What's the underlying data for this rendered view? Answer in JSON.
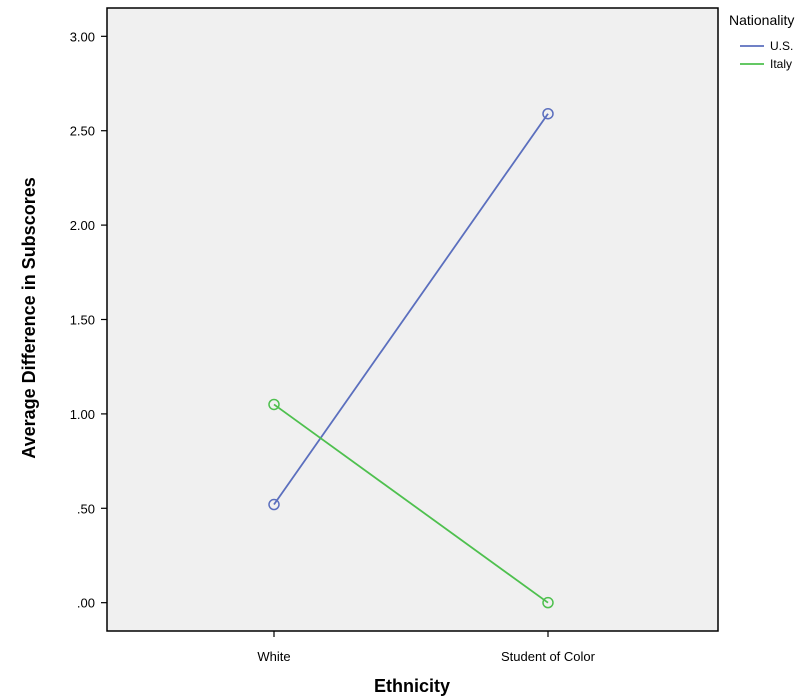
{
  "chart_data": {
    "type": "line",
    "title": "",
    "xlabel": "Ethnicity",
    "ylabel": "Average Difference in Subscores",
    "categories": [
      "White",
      "Student of Color"
    ],
    "ylim": [
      -0.15,
      3.15
    ],
    "yticks": [
      0,
      0.5,
      1.0,
      1.5,
      2.0,
      2.5,
      3.0
    ],
    "ytick_labels": [
      ".00",
      ".50",
      "1.00",
      "1.50",
      "2.00",
      "2.50",
      "3.00"
    ],
    "grid": false,
    "plot_background": "#f0f0f0",
    "legend": {
      "title": "Nationality",
      "position": "top-right-outside"
    },
    "series": [
      {
        "name": "U.S.",
        "values": [
          0.52,
          2.59
        ],
        "color": "#5b6fbe"
      },
      {
        "name": "Italy",
        "values": [
          1.05,
          0.0
        ],
        "color": "#4ec04e"
      }
    ]
  }
}
